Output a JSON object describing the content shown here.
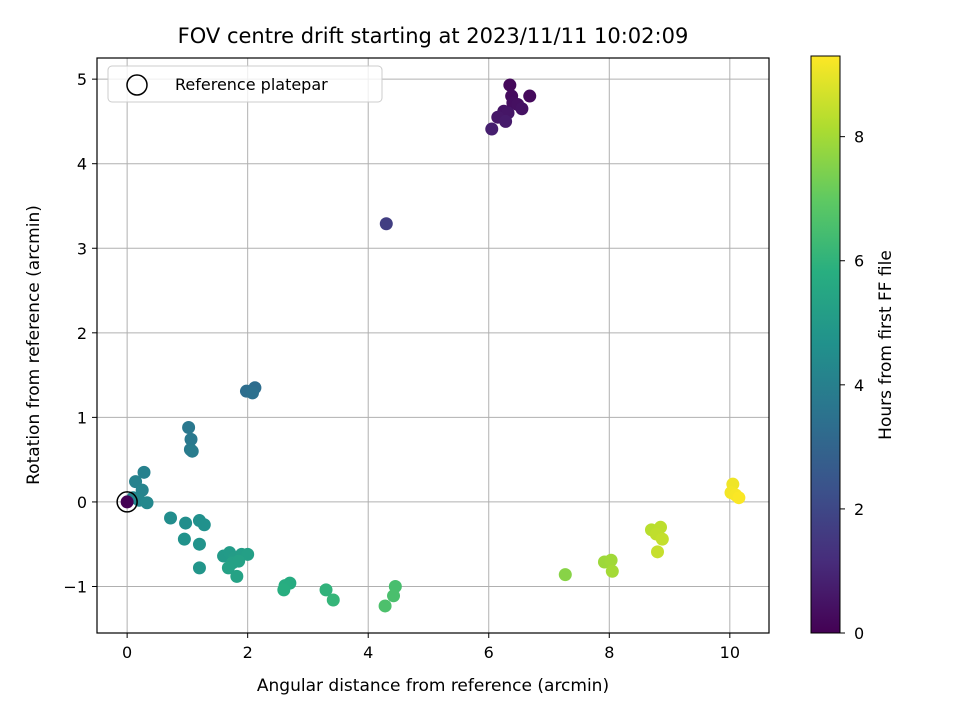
{
  "chart_data": {
    "type": "scatter",
    "title": "FOV centre drift starting at 2023/11/11 10:02:09",
    "xlabel": "Angular distance from reference (arcmin)",
    "ylabel": "Rotation from reference (arcmin)",
    "xlim": [
      -0.5,
      10.65
    ],
    "ylim": [
      -1.55,
      5.25
    ],
    "xticks": [
      0,
      2,
      4,
      6,
      8,
      10
    ],
    "yticks": [
      -1,
      0,
      1,
      2,
      3,
      4,
      5
    ],
    "grid": true,
    "legend": {
      "position": "top-left",
      "entries": [
        "Reference platepar"
      ]
    },
    "reference_point": {
      "x": 0,
      "y": 0
    },
    "colorbar": {
      "label": "Hours from first FF file",
      "colormap": "viridis",
      "range": [
        0,
        9.3
      ],
      "ticks": [
        0,
        2,
        4,
        6,
        8
      ]
    },
    "points": [
      {
        "x": 6.35,
        "y": 4.93,
        "c": 0.2
      },
      {
        "x": 6.68,
        "y": 4.8,
        "c": 0.25
      },
      {
        "x": 6.38,
        "y": 4.8,
        "c": 0.3
      },
      {
        "x": 6.4,
        "y": 4.72,
        "c": 0.35
      },
      {
        "x": 6.48,
        "y": 4.7,
        "c": 0.4
      },
      {
        "x": 6.55,
        "y": 4.65,
        "c": 0.45
      },
      {
        "x": 6.25,
        "y": 4.62,
        "c": 0.5
      },
      {
        "x": 6.32,
        "y": 4.6,
        "c": 0.55
      },
      {
        "x": 6.15,
        "y": 4.55,
        "c": 0.6
      },
      {
        "x": 6.28,
        "y": 4.5,
        "c": 0.7
      },
      {
        "x": 6.05,
        "y": 4.41,
        "c": 0.8
      },
      {
        "x": 4.3,
        "y": 3.29,
        "c": 1.7
      },
      {
        "x": 2.12,
        "y": 1.35,
        "c": 3.3
      },
      {
        "x": 1.98,
        "y": 1.31,
        "c": 3.35
      },
      {
        "x": 2.08,
        "y": 1.29,
        "c": 3.4
      },
      {
        "x": 1.02,
        "y": 0.88,
        "c": 3.7
      },
      {
        "x": 1.06,
        "y": 0.74,
        "c": 3.75
      },
      {
        "x": 1.05,
        "y": 0.62,
        "c": 3.8
      },
      {
        "x": 1.08,
        "y": 0.6,
        "c": 3.85
      },
      {
        "x": 0.28,
        "y": 0.35,
        "c": 4.05
      },
      {
        "x": 0.14,
        "y": 0.24,
        "c": 4.1
      },
      {
        "x": 0.25,
        "y": 0.14,
        "c": 4.15
      },
      {
        "x": 0.1,
        "y": 0.05,
        "c": 4.2
      },
      {
        "x": 0.2,
        "y": 0.02,
        "c": 4.25
      },
      {
        "x": 0.33,
        "y": -0.01,
        "c": 4.3
      },
      {
        "x": 0.72,
        "y": -0.19,
        "c": 4.5
      },
      {
        "x": 0.97,
        "y": -0.25,
        "c": 4.55
      },
      {
        "x": 1.2,
        "y": -0.22,
        "c": 4.6
      },
      {
        "x": 1.28,
        "y": -0.27,
        "c": 4.65
      },
      {
        "x": 0.95,
        "y": -0.44,
        "c": 4.7
      },
      {
        "x": 1.2,
        "y": -0.5,
        "c": 4.75
      },
      {
        "x": 1.2,
        "y": -0.78,
        "c": 4.8
      },
      {
        "x": 1.6,
        "y": -0.64,
        "c": 5.0
      },
      {
        "x": 1.7,
        "y": -0.6,
        "c": 5.05
      },
      {
        "x": 1.78,
        "y": -0.66,
        "c": 5.1
      },
      {
        "x": 1.9,
        "y": -0.62,
        "c": 5.15
      },
      {
        "x": 2.0,
        "y": -0.62,
        "c": 5.2
      },
      {
        "x": 1.75,
        "y": -0.72,
        "c": 5.25
      },
      {
        "x": 1.85,
        "y": -0.7,
        "c": 5.3
      },
      {
        "x": 1.68,
        "y": -0.78,
        "c": 5.3
      },
      {
        "x": 1.82,
        "y": -0.88,
        "c": 5.35
      },
      {
        "x": 2.7,
        "y": -0.96,
        "c": 5.7
      },
      {
        "x": 2.62,
        "y": -0.99,
        "c": 5.75
      },
      {
        "x": 2.6,
        "y": -1.04,
        "c": 5.8
      },
      {
        "x": 3.3,
        "y": -1.04,
        "c": 6.0
      },
      {
        "x": 3.42,
        "y": -1.16,
        "c": 6.1
      },
      {
        "x": 4.45,
        "y": -1.0,
        "c": 6.5
      },
      {
        "x": 4.42,
        "y": -1.11,
        "c": 6.55
      },
      {
        "x": 4.28,
        "y": -1.23,
        "c": 6.6
      },
      {
        "x": 7.27,
        "y": -0.86,
        "c": 7.6
      },
      {
        "x": 7.92,
        "y": -0.71,
        "c": 7.9
      },
      {
        "x": 8.03,
        "y": -0.69,
        "c": 7.95
      },
      {
        "x": 8.05,
        "y": -0.82,
        "c": 8.0
      },
      {
        "x": 8.7,
        "y": -0.33,
        "c": 8.3
      },
      {
        "x": 8.85,
        "y": -0.3,
        "c": 8.35
      },
      {
        "x": 8.78,
        "y": -0.38,
        "c": 8.4
      },
      {
        "x": 8.88,
        "y": -0.44,
        "c": 8.45
      },
      {
        "x": 8.8,
        "y": -0.59,
        "c": 8.5
      },
      {
        "x": 10.05,
        "y": 0.21,
        "c": 9.1
      },
      {
        "x": 10.02,
        "y": 0.11,
        "c": 9.15
      },
      {
        "x": 10.1,
        "y": 0.08,
        "c": 9.2
      },
      {
        "x": 10.15,
        "y": 0.05,
        "c": 9.25
      }
    ]
  }
}
